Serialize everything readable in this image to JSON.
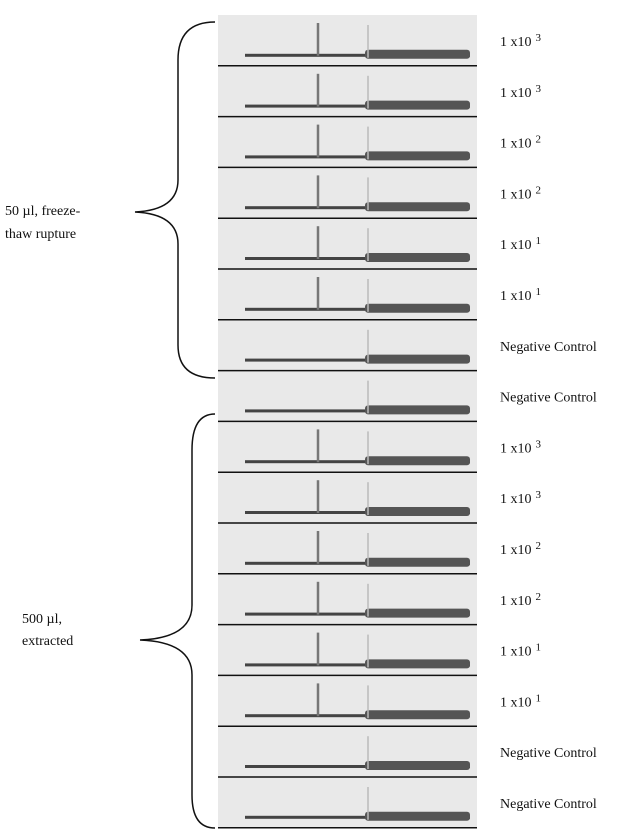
{
  "groups": [
    {
      "lines": [
        "50 µl, freeze-",
        "thaw rupture"
      ]
    },
    {
      "lines": [
        "500 µl,",
        "extracted"
      ]
    }
  ],
  "strips": [
    {
      "label": "1 x10",
      "exponent": "3"
    },
    {
      "label": "1 x10",
      "exponent": "3"
    },
    {
      "label": "1 x10",
      "exponent": "2"
    },
    {
      "label": "1 x10",
      "exponent": "2"
    },
    {
      "label": "1 x10",
      "exponent": "1"
    },
    {
      "label": "1 x10",
      "exponent": "1"
    },
    {
      "label": "Negative Control"
    },
    {
      "label": "Negative Control"
    },
    {
      "label": "1 x10",
      "exponent": "3"
    },
    {
      "label": "1 x10",
      "exponent": "3"
    },
    {
      "label": "1 x10",
      "exponent": "2"
    },
    {
      "label": "1 x10",
      "exponent": "2"
    },
    {
      "label": "1 x10",
      "exponent": "1"
    },
    {
      "label": "1 x10",
      "exponent": "1"
    },
    {
      "label": "Negative Control"
    },
    {
      "label": "Negative Control"
    }
  ]
}
